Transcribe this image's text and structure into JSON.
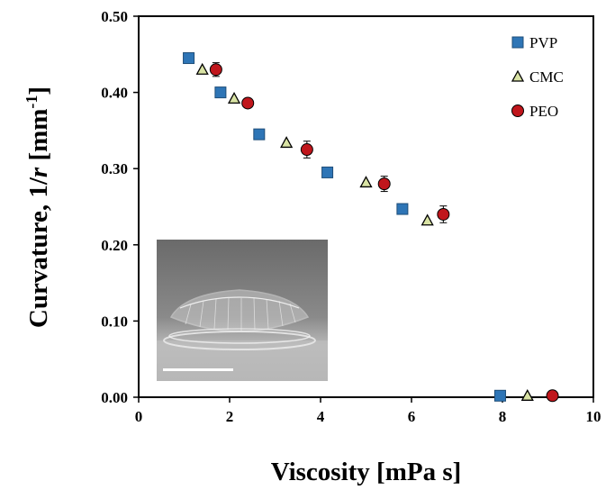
{
  "chart_data": {
    "type": "scatter",
    "xlabel": "Viscosity [mPa s]",
    "ylabel_prefix": "Curvature, 1/",
    "ylabel_var": "r",
    "ylabel_unit": " [mm",
    "ylabel_sup": "-1",
    "ylabel_close": "]",
    "xlim": [
      0,
      10
    ],
    "ylim": [
      0,
      0.5
    ],
    "x_ticks": [
      "0",
      "2",
      "4",
      "6",
      "8",
      "10"
    ],
    "y_ticks": [
      "0.00",
      "0.10",
      "0.20",
      "0.30",
      "0.40",
      "0.50"
    ],
    "grid": false,
    "legend_position": "top-right",
    "series": [
      {
        "name": "PVP",
        "marker": "square",
        "color": "#2e75b6",
        "x": [
          1.1,
          1.8,
          2.65,
          4.15,
          5.8,
          7.95
        ],
        "y": [
          0.445,
          0.4,
          0.345,
          0.295,
          0.247,
          0.002
        ],
        "err": [
          0,
          0,
          0,
          0,
          0,
          0
        ]
      },
      {
        "name": "CMC",
        "marker": "triangle",
        "color": "#d9e3a4",
        "x": [
          1.4,
          2.1,
          3.25,
          5.0,
          6.35,
          8.55
        ],
        "y": [
          0.43,
          0.392,
          0.334,
          0.282,
          0.232,
          0.002
        ],
        "err": [
          0,
          0,
          0,
          0,
          0,
          0
        ]
      },
      {
        "name": "PEO",
        "marker": "circle",
        "color": "#c0161c",
        "x": [
          1.7,
          2.4,
          3.7,
          5.4,
          6.7,
          9.1
        ],
        "y": [
          0.43,
          0.386,
          0.325,
          0.28,
          0.24,
          0.002
        ],
        "err": [
          0.009,
          0.006,
          0.011,
          0.01,
          0.011,
          0
        ]
      }
    ]
  },
  "inset": {
    "description_icon": "photo-inset"
  }
}
